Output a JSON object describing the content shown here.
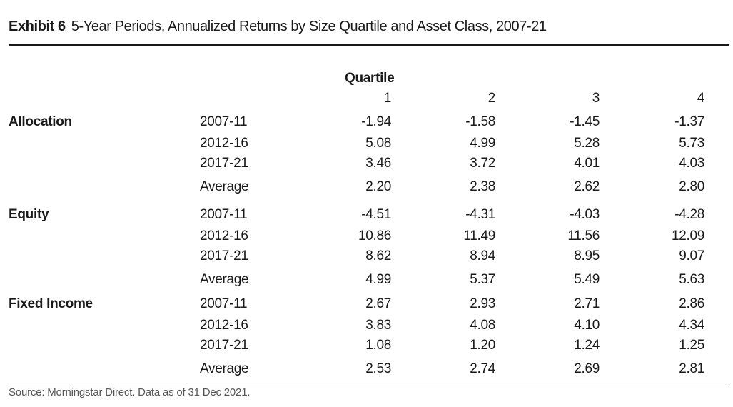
{
  "exhibit": {
    "label": "Exhibit 6",
    "title": "5-Year Periods, Annualized Returns by Size Quartile and Asset Class, 2007-21"
  },
  "chart_data": {
    "type": "table",
    "column_group_label": "Quartile",
    "columns": [
      "1",
      "2",
      "3",
      "4"
    ],
    "groups": [
      {
        "name": "Allocation",
        "rows": [
          {
            "period": "2007-11",
            "values": [
              "-1.94",
              "-1.58",
              "-1.45",
              "-1.37"
            ]
          },
          {
            "period": "2012-16",
            "values": [
              "5.08",
              "4.99",
              "5.28",
              "5.73"
            ]
          },
          {
            "period": "2017-21",
            "values": [
              "3.46",
              "3.72",
              "4.01",
              "4.03"
            ]
          },
          {
            "period": "Average",
            "values": [
              "2.20",
              "2.38",
              "2.62",
              "2.80"
            ]
          }
        ]
      },
      {
        "name": "Equity",
        "rows": [
          {
            "period": "2007-11",
            "values": [
              "-4.51",
              "-4.31",
              "-4.03",
              "-4.28"
            ]
          },
          {
            "period": "2012-16",
            "values": [
              "10.86",
              "11.49",
              "11.56",
              "12.09"
            ]
          },
          {
            "period": "2017-21",
            "values": [
              "8.62",
              "8.94",
              "8.95",
              "9.07"
            ]
          },
          {
            "period": "Average",
            "values": [
              "4.99",
              "5.37",
              "5.49",
              "5.63"
            ]
          }
        ]
      },
      {
        "name": "Fixed Income",
        "rows": [
          {
            "period": "2007-11",
            "values": [
              "2.67",
              "2.93",
              "2.71",
              "2.86"
            ]
          },
          {
            "period": "2012-16",
            "values": [
              "3.83",
              "4.08",
              "4.10",
              "4.34"
            ]
          },
          {
            "period": "2017-21",
            "values": [
              "1.08",
              "1.20",
              "1.24",
              "1.25"
            ]
          },
          {
            "period": "Average",
            "values": [
              "2.53",
              "2.74",
              "2.69",
              "2.81"
            ]
          }
        ]
      }
    ]
  },
  "source": "Source: Morningstar Direct. Data as of 31 Dec 2021."
}
